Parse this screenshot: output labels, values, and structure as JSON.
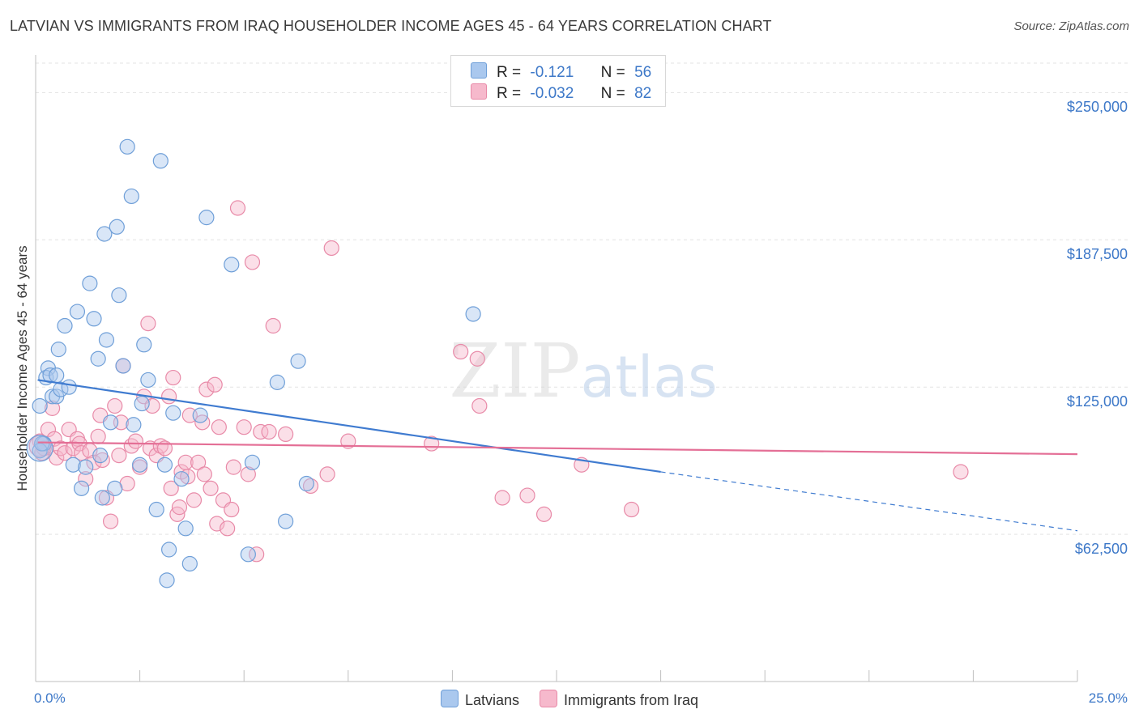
{
  "header": {
    "title": "LATVIAN VS IMMIGRANTS FROM IRAQ HOUSEHOLDER INCOME AGES 45 - 64 YEARS CORRELATION CHART",
    "source": "Source: ZipAtlas.com"
  },
  "watermark": "ZIPatlas",
  "legend": {
    "rows": [
      {
        "r_label": "R =",
        "r_value": "-0.121",
        "n_label": "N =",
        "n_value": "56"
      },
      {
        "r_label": "R =",
        "r_value": "-0.032",
        "n_label": "N =",
        "n_value": "82"
      }
    ]
  },
  "colors": {
    "blue_fill": "#aac8ee",
    "blue_stroke": "#6f9fd8",
    "blue_line": "#3f7bd0",
    "pink_fill": "#f6b9cc",
    "pink_stroke": "#e88aa8",
    "pink_line": "#e46f96",
    "tick_text": "#3d78c8"
  },
  "chart_data": {
    "type": "scatter",
    "xlabel": "",
    "ylabel": "Householder Income Ages 45 - 64 years",
    "xlim": [
      0,
      25
    ],
    "ylim": [
      0,
      262500
    ],
    "x_tick_labels": [
      "0.0%",
      "25.0%"
    ],
    "y_ticks": [
      {
        "value": 62500,
        "label": "$62,500"
      },
      {
        "value": 125000,
        "label": "$125,000"
      },
      {
        "value": 187500,
        "label": "$187,500"
      },
      {
        "value": 250000,
        "label": "$250,000"
      }
    ],
    "grid": "horizontal dashed",
    "legend_position": "top-center",
    "series": [
      {
        "name": "Latvians",
        "color": "#aac8ee",
        "trend": {
          "x0": 0.05,
          "y0": 128000,
          "x1": 15.0,
          "y1": 89000,
          "dashed_to_x": 25.0,
          "dashed_to_y": 64000
        },
        "points": [
          [
            0.1,
            117000
          ],
          [
            0.2,
            101000
          ],
          [
            0.1,
            98000
          ],
          [
            0.3,
            133000
          ],
          [
            0.25,
            129000
          ],
          [
            0.35,
            130000
          ],
          [
            0.4,
            121000
          ],
          [
            0.5,
            121000
          ],
          [
            0.6,
            124000
          ],
          [
            0.5,
            130000
          ],
          [
            0.55,
            141000
          ],
          [
            0.7,
            151000
          ],
          [
            0.8,
            125000
          ],
          [
            1.0,
            157000
          ],
          [
            0.9,
            92000
          ],
          [
            1.1,
            82000
          ],
          [
            1.2,
            91000
          ],
          [
            1.3,
            169000
          ],
          [
            1.4,
            154000
          ],
          [
            1.5,
            137000
          ],
          [
            1.55,
            96000
          ],
          [
            1.6,
            78000
          ],
          [
            1.65,
            190000
          ],
          [
            1.7,
            145000
          ],
          [
            1.8,
            110000
          ],
          [
            1.9,
            82000
          ],
          [
            1.95,
            193000
          ],
          [
            2.0,
            164000
          ],
          [
            2.1,
            134000
          ],
          [
            2.2,
            227000
          ],
          [
            2.3,
            206000
          ],
          [
            2.35,
            109000
          ],
          [
            2.5,
            92000
          ],
          [
            2.55,
            118000
          ],
          [
            2.6,
            143000
          ],
          [
            2.7,
            128000
          ],
          [
            2.9,
            73000
          ],
          [
            3.0,
            221000
          ],
          [
            3.1,
            92000
          ],
          [
            3.2,
            56000
          ],
          [
            3.15,
            43000
          ],
          [
            3.3,
            114000
          ],
          [
            3.6,
            65000
          ],
          [
            3.5,
            86000
          ],
          [
            3.7,
            50000
          ],
          [
            3.95,
            113000
          ],
          [
            4.1,
            197000
          ],
          [
            4.7,
            177000
          ],
          [
            5.1,
            54000
          ],
          [
            5.2,
            93000
          ],
          [
            5.8,
            127000
          ],
          [
            6.0,
            68000
          ],
          [
            6.3,
            136000
          ],
          [
            6.5,
            84000
          ],
          [
            10.5,
            156000
          ],
          [
            0.15,
            101000
          ]
        ]
      },
      {
        "name": "Immigrants from Iraq",
        "color": "#f6b9cc",
        "trend": {
          "x0": 0.05,
          "y0": 101500,
          "x1": 25.0,
          "y1": 96500
        },
        "points": [
          [
            0.1,
            102000
          ],
          [
            0.15,
            97000
          ],
          [
            0.2,
            99000
          ],
          [
            0.3,
            107000
          ],
          [
            0.4,
            116000
          ],
          [
            0.45,
            103000
          ],
          [
            0.5,
            95000
          ],
          [
            0.6,
            99000
          ],
          [
            0.7,
            97000
          ],
          [
            0.8,
            107000
          ],
          [
            0.9,
            99000
          ],
          [
            1.0,
            103000
          ],
          [
            1.05,
            101000
          ],
          [
            1.1,
            97000
          ],
          [
            1.2,
            86000
          ],
          [
            1.3,
            98000
          ],
          [
            1.4,
            93000
          ],
          [
            1.5,
            104000
          ],
          [
            1.55,
            113000
          ],
          [
            1.6,
            94000
          ],
          [
            1.7,
            78000
          ],
          [
            1.8,
            68000
          ],
          [
            1.9,
            117000
          ],
          [
            2.0,
            96000
          ],
          [
            2.05,
            110000
          ],
          [
            2.1,
            134000
          ],
          [
            2.2,
            84000
          ],
          [
            2.3,
            100000
          ],
          [
            2.4,
            102000
          ],
          [
            2.5,
            91000
          ],
          [
            2.6,
            121000
          ],
          [
            2.7,
            152000
          ],
          [
            2.75,
            99000
          ],
          [
            2.8,
            117000
          ],
          [
            2.9,
            96000
          ],
          [
            3.0,
            100000
          ],
          [
            3.1,
            99000
          ],
          [
            3.2,
            121000
          ],
          [
            3.25,
            82000
          ],
          [
            3.3,
            129000
          ],
          [
            3.4,
            71000
          ],
          [
            3.45,
            74000
          ],
          [
            3.5,
            89000
          ],
          [
            3.6,
            93000
          ],
          [
            3.65,
            87000
          ],
          [
            3.7,
            113000
          ],
          [
            3.8,
            77000
          ],
          [
            3.9,
            93000
          ],
          [
            4.0,
            110000
          ],
          [
            4.05,
            88000
          ],
          [
            4.1,
            124000
          ],
          [
            4.2,
            82000
          ],
          [
            4.3,
            126000
          ],
          [
            4.35,
            67000
          ],
          [
            4.4,
            108000
          ],
          [
            4.5,
            77000
          ],
          [
            4.6,
            65000
          ],
          [
            4.7,
            73000
          ],
          [
            4.75,
            91000
          ],
          [
            4.85,
            201000
          ],
          [
            5.0,
            108000
          ],
          [
            5.1,
            88000
          ],
          [
            5.2,
            178000
          ],
          [
            5.3,
            54000
          ],
          [
            5.4,
            106000
          ],
          [
            5.6,
            106000
          ],
          [
            5.7,
            151000
          ],
          [
            6.0,
            105000
          ],
          [
            6.6,
            83000
          ],
          [
            7.0,
            88000
          ],
          [
            7.1,
            184000
          ],
          [
            7.5,
            102000
          ],
          [
            9.5,
            101000
          ],
          [
            10.2,
            140000
          ],
          [
            10.6,
            137000
          ],
          [
            10.65,
            117000
          ],
          [
            11.2,
            78000
          ],
          [
            11.8,
            79000
          ],
          [
            12.2,
            71000
          ],
          [
            13.1,
            92000
          ],
          [
            14.3,
            73000
          ],
          [
            22.2,
            89000
          ]
        ]
      }
    ]
  }
}
